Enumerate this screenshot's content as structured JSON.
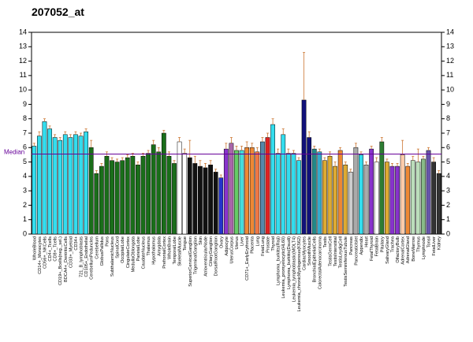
{
  "chart_data": {
    "type": "bar",
    "title": "207052_at",
    "categories": [
      "WholeBlood",
      "CD14+_Monocytes",
      "CD56+_NKCells",
      "CD4+_Tcells",
      "CD8+_Tcells",
      "CD19+_Bcells(neg._sel.)",
      "BDCA4+_DentriticCells",
      "CD33+_Myeloid",
      "CD34+",
      "721_B_lymphoblasts",
      "CD105+_Endothelial",
      "CerebellumPeduncles",
      "Cerebellum",
      "GlobusPallidus",
      "Pons",
      "SubthalamicNucleus",
      "SpinalCord",
      "OccipitalLobe",
      "CingulateCortex",
      "MedullaOblongata",
      "ParietalLobe",
      "CaudateNucleus",
      "Thalamus",
      "Hypothalamus",
      "Amygdala",
      "PrefrontalCortex",
      "WholeBrain",
      "TemporalLobe",
      "SkeletalMuscle",
      "Tongue",
      "SuperiorCervicalGanglion",
      "TrigeminalGanglion",
      "Skin",
      "AtrioventricularNode",
      "CiliaryGanglion",
      "DorsalRootGanglion",
      "Ovary",
      "Adipocyte",
      "UterusCorpus",
      "Uterus",
      "Liver",
      "CD71+_EarlyErythroid",
      "Placenta",
      "Lung",
      "FetalLung",
      "Prostate",
      "Thyroid",
      "Lymphoma_burkitts(Raji)",
      "Leukemia_promyelocytic(HL60)",
      "Lymphoma_burkitts(Daudi)",
      "Leukemia_lymphoblastic(MOLT4)",
      "Leukemia_chronicMyelogenous(K562)",
      "CardiacMyocytes",
      "SmoothMuscle",
      "BronchialEpithelialCells",
      "ColorectalAdenocarcinoma",
      "Testis",
      "TestisGermCell",
      "TestisInterstitial",
      "TestisLeydigCell",
      "TestisSeminiferousTubule",
      "Pancreas",
      "PancreaticIslet",
      "Appendix",
      "Heart",
      "FetalThyroid",
      "FetalBrain",
      "Pituitary",
      "SalivaryGland",
      "Trachea",
      "OlfactoryBulb",
      "AdrenalCortex",
      "AdrenalGland",
      "BoneMarrow",
      "Thymus",
      "Lymphnode",
      "Tonsil",
      "FetalLiver",
      "Kidney"
    ],
    "values": [
      6.1,
      6.8,
      7.8,
      7.3,
      6.7,
      6.5,
      6.9,
      6.7,
      6.9,
      6.8,
      7.1,
      6.0,
      4.2,
      4.7,
      5.4,
      5.1,
      5.0,
      5.1,
      5.3,
      5.4,
      4.8,
      5.4,
      5.6,
      6.2,
      5.7,
      7.0,
      5.4,
      4.9,
      6.4,
      5.6,
      5.3,
      4.9,
      4.7,
      4.6,
      4.8,
      4.3,
      3.9,
      5.9,
      6.3,
      5.8,
      5.8,
      6.0,
      6.0,
      5.7,
      6.4,
      6.7,
      7.6,
      5.6,
      6.9,
      5.6,
      5.6,
      5.1,
      9.3,
      6.7,
      5.9,
      5.7,
      5.1,
      5.4,
      4.7,
      5.8,
      4.8,
      4.3,
      6.0,
      5.5,
      4.8,
      5.9,
      5.0,
      6.4,
      5.0,
      4.7,
      4.7,
      5.5,
      4.7,
      5.1,
      5.0,
      5.2,
      5.8,
      5.0,
      4.2
    ],
    "errors": [
      0.2,
      0.3,
      0.2,
      0.2,
      0.2,
      0.2,
      0.2,
      0.2,
      0.2,
      0.2,
      0.2,
      0.5,
      0.2,
      0.2,
      0.3,
      0.2,
      0.2,
      0.2,
      0.2,
      0.2,
      0.2,
      0.2,
      0.2,
      0.3,
      0.3,
      0.2,
      0.3,
      0.2,
      0.3,
      0.3,
      1.2,
      0.5,
      0.4,
      0.3,
      0.3,
      0.2,
      0.2,
      0.4,
      0.4,
      0.3,
      0.3,
      0.4,
      0.3,
      0.3,
      0.3,
      0.3,
      0.4,
      0.3,
      0.4,
      0.3,
      0.2,
      0.2,
      3.3,
      0.4,
      0.2,
      0.2,
      0.2,
      0.3,
      0.3,
      0.2,
      0.2,
      0.2,
      0.3,
      0.2,
      0.2,
      0.2,
      0.3,
      0.3,
      0.2,
      0.2,
      0.2,
      1.0,
      0.2,
      0.3,
      0.9,
      0.2,
      0.2,
      0.3,
      0.2
    ],
    "colors": [
      "#33ddee",
      "#33ddee",
      "#33ddee",
      "#33ddee",
      "#33ddee",
      "#33ddee",
      "#33ddee",
      "#33ddee",
      "#33ddee",
      "#33ddee",
      "#33ddee",
      "#1a6e1a",
      "#1a6e1a",
      "#1a6e1a",
      "#1a6e1a",
      "#1a6e1a",
      "#1a6e1a",
      "#1a6e1a",
      "#1a6e1a",
      "#1a6e1a",
      "#1a6e1a",
      "#1a6e1a",
      "#1a6e1a",
      "#1a6e1a",
      "#1a6e1a",
      "#1a6e1a",
      "#1a6e1a",
      "#1a6e1a",
      "#ffffff",
      "#ffffff",
      "#111111",
      "#111111",
      "#111111",
      "#111111",
      "#111111",
      "#111111",
      "#2233cc",
      "#8833cc",
      "#aa66aa",
      "#66cc66",
      "#44dddd",
      "#ee8833",
      "#ee8833",
      "#ee7744",
      "#5588aa",
      "#dd2222",
      "#33ddee",
      "#33ddee",
      "#33ddee",
      "#33ddee",
      "#33ddee",
      "#33ddee",
      "#11117a",
      "#11117a",
      "#228888",
      "#33aacc",
      "#ddaa33",
      "#ddaa33",
      "#ddaa33",
      "#ee8833",
      "#ddaa33",
      "#cccccc",
      "#aaaaaa",
      "#33ddee",
      "#aaaaaa",
      "#8833cc",
      "#ffffff",
      "#2e7d32",
      "#ddaa33",
      "#8833cc",
      "#8833cc",
      "#ffccaa",
      "#ee8833",
      "#bbddbb",
      "#bbddbb",
      "#88bb88",
      "#6655aa",
      "#333333",
      "#333333"
    ],
    "median": 5.55,
    "median_label": "Median",
    "median_color": "#660099",
    "ylim": [
      0,
      14
    ],
    "yticks": [
      0,
      1,
      2,
      3,
      4,
      5,
      6,
      7,
      8,
      9,
      10,
      11,
      12,
      13,
      14
    ],
    "error_color": "#cc7733"
  }
}
